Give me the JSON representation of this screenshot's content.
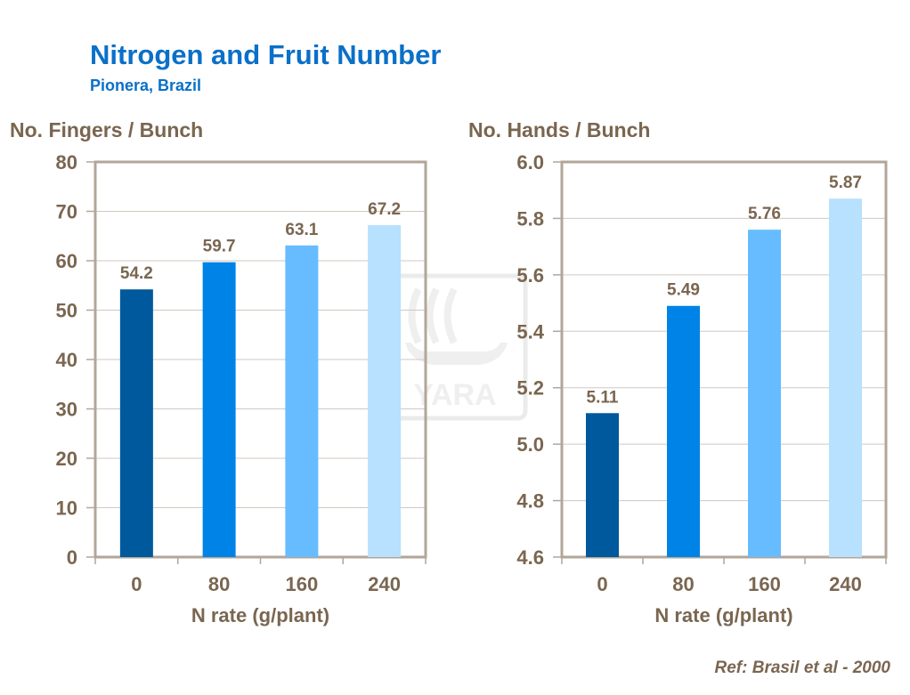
{
  "title": "Nitrogen and Fruit Number",
  "subtitle": "Pionera,  Brazil",
  "reference": "Ref: Brasil et al - 2000",
  "watermark": "YARA",
  "colors": {
    "title": "#0a70c8",
    "text": "#7a6650",
    "axis": "#b2a698",
    "bars": [
      "#00599c",
      "#0083e6",
      "#66bcff",
      "#b8e0ff"
    ]
  },
  "chart_data": [
    {
      "type": "bar",
      "ylabel": "No. Fingers / Bunch",
      "xlabel": "N rate (g/plant)",
      "categories": [
        "0",
        "80",
        "160",
        "240"
      ],
      "values": [
        54.2,
        59.7,
        63.1,
        67.2
      ],
      "labels": [
        "54.2",
        "59.7",
        "63.1",
        "67.2"
      ],
      "ylim": [
        0,
        80
      ],
      "yticks": [
        "0",
        "10",
        "20",
        "30",
        "40",
        "50",
        "60",
        "70",
        "80"
      ],
      "grid": true
    },
    {
      "type": "bar",
      "ylabel": "No. Hands / Bunch",
      "xlabel": "N rate (g/plant)",
      "categories": [
        "0",
        "80",
        "160",
        "240"
      ],
      "values": [
        5.11,
        5.49,
        5.76,
        5.87
      ],
      "labels": [
        "5.11",
        "5.49",
        "5.76",
        "5.87"
      ],
      "ylim": [
        4.6,
        6.0
      ],
      "yticks": [
        "4.6",
        "4.8",
        "5.0",
        "5.2",
        "5.4",
        "5.6",
        "5.8",
        "6.0"
      ],
      "grid": true
    }
  ]
}
